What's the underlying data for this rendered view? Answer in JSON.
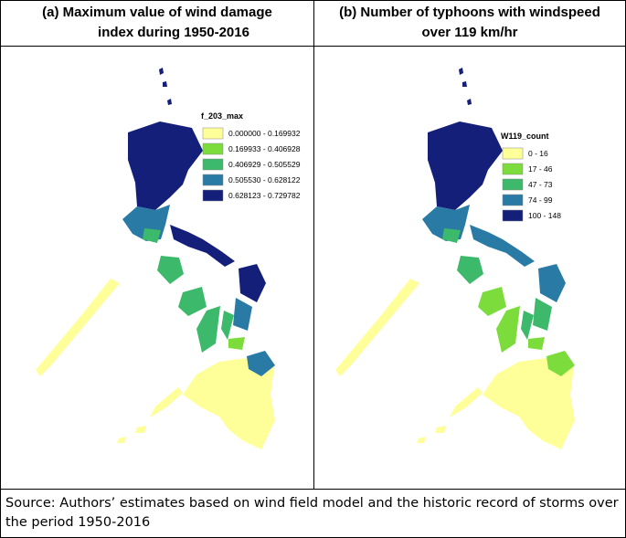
{
  "panels": [
    {
      "title_lines": [
        "(a)  Maximum value of wind damage",
        "index during 1950-2016"
      ],
      "legend": {
        "title": "f_203_max",
        "items": [
          {
            "label": "0.000000 - 0.169932",
            "color": "#ffff99"
          },
          {
            "label": "0.169933 - 0.406928",
            "color": "#7cdc3c"
          },
          {
            "label": "0.406929 - 0.505529",
            "color": "#3cb96a"
          },
          {
            "label": "0.505530 - 0.628122",
            "color": "#2a7aa6"
          },
          {
            "label": "0.628123 - 0.729782",
            "color": "#141f7a"
          }
        ]
      }
    },
    {
      "title_lines": [
        "(b) Number of typhoons with windspeed",
        "over 119 km/hr"
      ],
      "legend": {
        "title": "W119_count",
        "items": [
          {
            "label": "0 - 16",
            "color": "#ffff99"
          },
          {
            "label": "17 - 46",
            "color": "#7cdc3c"
          },
          {
            "label": "47 - 73",
            "color": "#3cb96a"
          },
          {
            "label": "74 - 99",
            "color": "#2a7aa6"
          },
          {
            "label": "100 - 148",
            "color": "#141f7a"
          }
        ]
      }
    }
  ],
  "source_lines": [
    "Source: Authors’ estimates based on wind field model and the historic record of storms over",
    "the period 1950-2016"
  ]
}
